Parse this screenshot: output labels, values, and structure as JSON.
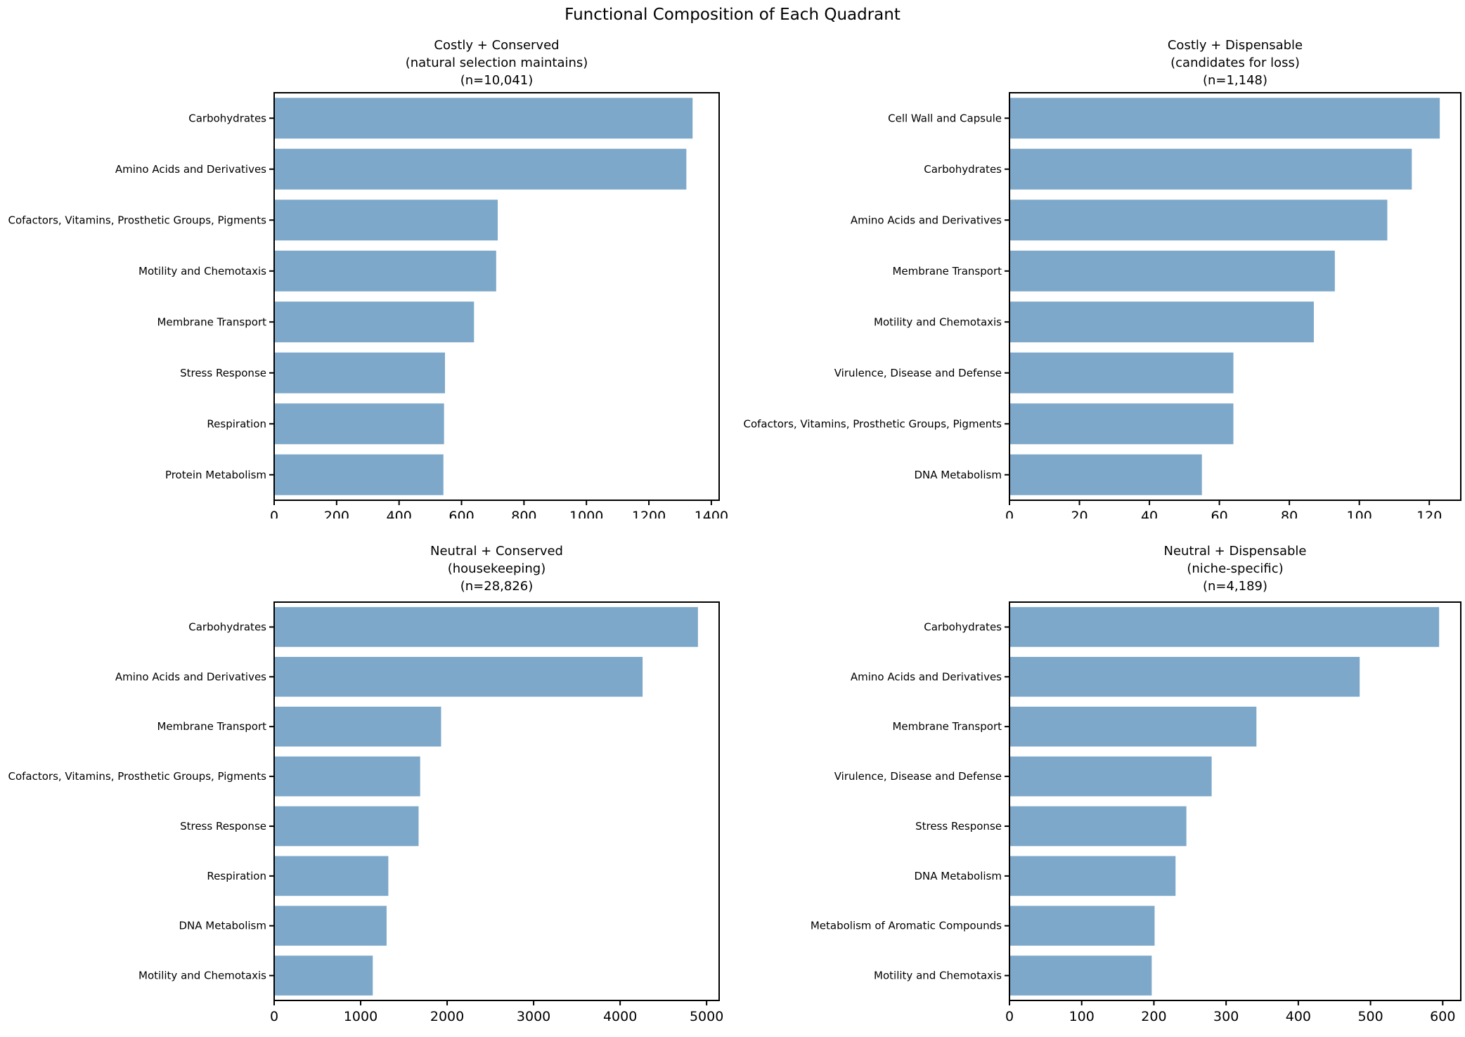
{
  "figure_title": "Functional Composition of Each Quadrant",
  "style": {
    "bar_color": "#7da8ca",
    "axis_color": "#000000",
    "text_color": "#000000",
    "background_color": "#ffffff"
  },
  "chart_data": [
    {
      "id": "costly-conserved",
      "type": "bar",
      "orientation": "horizontal",
      "title_lines": [
        "Costly + Conserved",
        "(natural selection maintains)",
        "(n=10,041)"
      ],
      "n_label": "n=10,041",
      "categories": [
        "Carbohydrates",
        "Amino Acids and Derivatives",
        "Cofactors, Vitamins, Prosthetic Groups, Pigments",
        "Motility and Chemotaxis",
        "Membrane Transport",
        "Stress Response",
        "Respiration",
        "Protein Metabolism"
      ],
      "values": [
        1340,
        1320,
        716,
        711,
        640,
        547,
        544,
        542
      ],
      "xticks": [
        0,
        200,
        400,
        600,
        800,
        1000,
        1200,
        1400
      ],
      "xlim": [
        0,
        1425
      ],
      "grid": false,
      "legend": null
    },
    {
      "id": "costly-dispensable",
      "type": "bar",
      "orientation": "horizontal",
      "title_lines": [
        "Costly + Dispensable",
        "(candidates for loss)",
        "(n=1,148)"
      ],
      "n_label": "n=1,148",
      "categories": [
        "Cell Wall and Capsule",
        "Carbohydrates",
        "Amino Acids and Derivatives",
        "Membrane Transport",
        "Motility and Chemotaxis",
        "Virulence, Disease and Defense",
        "Cofactors, Vitamins, Prosthetic Groups, Pigments",
        "DNA Metabolism"
      ],
      "values": [
        123,
        115,
        108,
        93,
        87,
        64,
        64,
        55
      ],
      "xticks": [
        0,
        20,
        40,
        60,
        80,
        100,
        120
      ],
      "xlim": [
        0,
        129
      ],
      "grid": false,
      "legend": null
    },
    {
      "id": "neutral-conserved",
      "type": "bar",
      "orientation": "horizontal",
      "title_lines": [
        "Neutral + Conserved",
        "(housekeeping)",
        "(n=28,826)"
      ],
      "n_label": "n=28,826",
      "categories": [
        "Carbohydrates",
        "Amino Acids and Derivatives",
        "Membrane Transport",
        "Cofactors, Vitamins, Prosthetic Groups, Pigments",
        "Stress Response",
        "Respiration",
        "DNA Metabolism",
        "Motility and Chemotaxis"
      ],
      "values": [
        4900,
        4260,
        1930,
        1688,
        1670,
        1320,
        1300,
        1140
      ],
      "xticks": [
        0,
        1000,
        2000,
        3000,
        4000,
        5000
      ],
      "xlim": [
        0,
        5145
      ],
      "grid": false,
      "legend": null
    },
    {
      "id": "neutral-dispensable",
      "type": "bar",
      "orientation": "horizontal",
      "title_lines": [
        "Neutral + Dispensable",
        "(niche-specific)",
        "(n=4,189)"
      ],
      "n_label": "n=4,189",
      "categories": [
        "Carbohydrates",
        "Amino Acids and Derivatives",
        "Membrane Transport",
        "Virulence, Disease and Defense",
        "Stress Response",
        "DNA Metabolism",
        "Metabolism of Aromatic Compounds",
        "Motility and Chemotaxis"
      ],
      "values": [
        595,
        485,
        342,
        280,
        245,
        230,
        201,
        197
      ],
      "xticks": [
        0,
        100,
        200,
        300,
        400,
        500,
        600
      ],
      "xlim": [
        0,
        625
      ],
      "grid": false,
      "legend": null
    }
  ]
}
